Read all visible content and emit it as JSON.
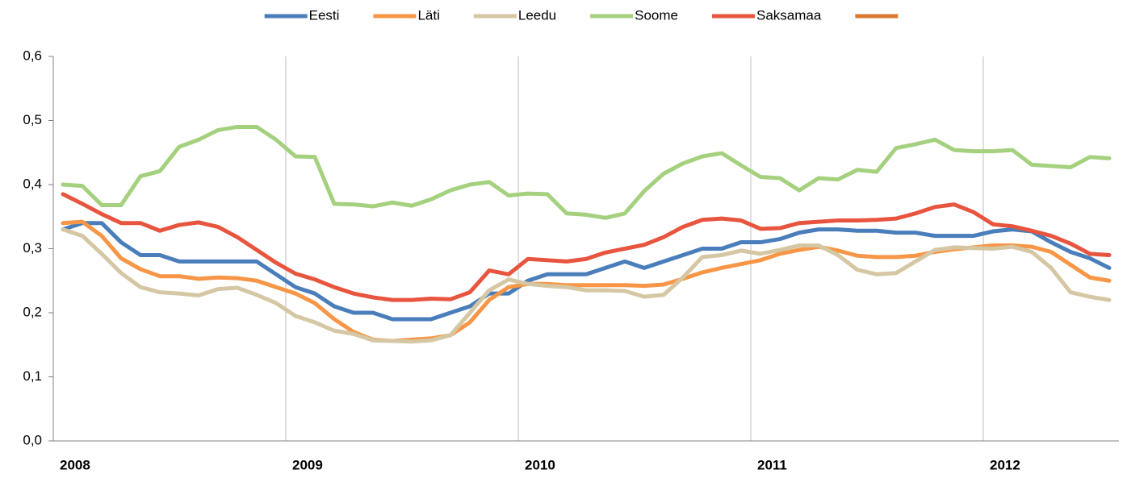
{
  "chart_data": {
    "type": "line",
    "categories": [
      "2008",
      null,
      null,
      null,
      null,
      null,
      null,
      null,
      null,
      null,
      null,
      null,
      "2009",
      null,
      null,
      null,
      null,
      null,
      null,
      null,
      null,
      null,
      null,
      null,
      "2010",
      null,
      null,
      null,
      null,
      null,
      null,
      null,
      null,
      null,
      null,
      null,
      "2011",
      null,
      null,
      null,
      null,
      null,
      null,
      null,
      null,
      null,
      null,
      null,
      "2012",
      null,
      null,
      null,
      null,
      null,
      null
    ],
    "ylim": [
      0,
      0.6
    ],
    "yticks": [
      {
        "value": 0,
        "label": "0,0"
      },
      {
        "value": 0.1,
        "label": "0,1"
      },
      {
        "value": 0.2,
        "label": "0,2"
      },
      {
        "value": 0.3,
        "label": "0,3"
      },
      {
        "value": 0.4,
        "label": "0,4"
      },
      {
        "value": 0.5,
        "label": "0,5"
      },
      {
        "value": 0.6,
        "label": "0,6"
      }
    ],
    "legend": "top",
    "series": [
      {
        "name": "Eesti",
        "color": "#4a7ebb",
        "values": [
          0.33,
          0.34,
          0.34,
          0.31,
          0.29,
          0.29,
          0.28,
          0.28,
          0.28,
          0.28,
          0.28,
          0.26,
          0.24,
          0.23,
          0.21,
          0.2,
          0.2,
          0.19,
          0.19,
          0.19,
          0.2,
          0.21,
          0.23,
          0.23,
          0.25,
          0.26,
          0.26,
          0.26,
          0.27,
          0.28,
          0.27,
          0.28,
          0.29,
          0.3,
          0.3,
          0.31,
          0.31,
          0.315,
          0.325,
          0.33,
          0.33,
          0.328,
          0.328,
          0.325,
          0.325,
          0.32,
          0.32,
          0.32,
          0.327,
          0.33,
          0.327,
          0.31,
          0.295,
          0.285,
          0.27
        ]
      },
      {
        "name": "Läti",
        "color": "#f79646",
        "values": [
          0.34,
          0.342,
          0.32,
          0.285,
          0.268,
          0.257,
          0.257,
          0.253,
          0.255,
          0.254,
          0.25,
          0.24,
          0.23,
          0.215,
          0.19,
          0.17,
          0.158,
          0.156,
          0.158,
          0.16,
          0.165,
          0.185,
          0.22,
          0.24,
          0.245,
          0.245,
          0.243,
          0.243,
          0.243,
          0.243,
          0.242,
          0.244,
          0.253,
          0.263,
          0.27,
          0.276,
          0.282,
          0.292,
          0.298,
          0.303,
          0.297,
          0.289,
          0.287,
          0.287,
          0.289,
          0.295,
          0.299,
          0.302,
          0.305,
          0.305,
          0.303,
          0.295,
          0.275,
          0.255,
          0.25
        ]
      },
      {
        "name": "Leedu",
        "color": "#d6c7a4",
        "values": [
          0.33,
          0.32,
          0.292,
          0.262,
          0.24,
          0.232,
          0.23,
          0.227,
          0.237,
          0.239,
          0.228,
          0.215,
          0.195,
          0.185,
          0.172,
          0.167,
          0.157,
          0.156,
          0.155,
          0.157,
          0.165,
          0.2,
          0.235,
          0.252,
          0.245,
          0.242,
          0.24,
          0.235,
          0.235,
          0.234,
          0.225,
          0.228,
          0.255,
          0.287,
          0.29,
          0.297,
          0.292,
          0.298,
          0.305,
          0.305,
          0.29,
          0.267,
          0.26,
          0.262,
          0.28,
          0.298,
          0.302,
          0.301,
          0.3,
          0.303,
          0.295,
          0.27,
          0.232,
          0.225,
          0.22
        ]
      },
      {
        "name": "Soome",
        "color": "#a5d17f",
        "values": [
          0.4,
          0.398,
          0.368,
          0.368,
          0.413,
          0.421,
          0.459,
          0.47,
          0.485,
          0.49,
          0.49,
          0.47,
          0.444,
          0.443,
          0.37,
          0.369,
          0.366,
          0.372,
          0.367,
          0.377,
          0.391,
          0.4,
          0.404,
          0.383,
          0.386,
          0.385,
          0.355,
          0.353,
          0.348,
          0.355,
          0.39,
          0.417,
          0.433,
          0.444,
          0.449,
          0.43,
          0.412,
          0.41,
          0.391,
          0.41,
          0.408,
          0.423,
          0.42,
          0.457,
          0.463,
          0.47,
          0.454,
          0.452,
          0.452,
          0.454,
          0.431,
          0.429,
          0.427,
          0.443,
          0.441
        ]
      },
      {
        "name": "Saksamaa",
        "color": "#e8553f",
        "values": [
          0.385,
          0.37,
          0.354,
          0.34,
          0.34,
          0.328,
          0.337,
          0.341,
          0.334,
          0.318,
          0.298,
          0.278,
          0.261,
          0.252,
          0.24,
          0.23,
          0.224,
          0.22,
          0.22,
          0.222,
          0.221,
          0.232,
          0.266,
          0.26,
          0.284,
          0.282,
          0.28,
          0.284,
          0.294,
          0.3,
          0.306,
          0.318,
          0.334,
          0.345,
          0.347,
          0.344,
          0.331,
          0.332,
          0.34,
          0.342,
          0.344,
          0.344,
          0.345,
          0.347,
          0.355,
          0.365,
          0.369,
          0.357,
          0.338,
          0.335,
          0.328,
          0.32,
          0.308,
          0.292,
          0.29
        ]
      },
      {
        "name": null,
        "color": "#d97b2e",
        "values": [
          null,
          null,
          null,
          null,
          null,
          null,
          null,
          null,
          null,
          null,
          null,
          null,
          null,
          null,
          null,
          null,
          null,
          null,
          null,
          null,
          null,
          null,
          null,
          null,
          null,
          null,
          null,
          null,
          null,
          null,
          null,
          null,
          null,
          null,
          null,
          null,
          null,
          null,
          null,
          null,
          null,
          null,
          null,
          null,
          null,
          null,
          null,
          null,
          null,
          null,
          null,
          null,
          null,
          null,
          null
        ]
      }
    ]
  }
}
